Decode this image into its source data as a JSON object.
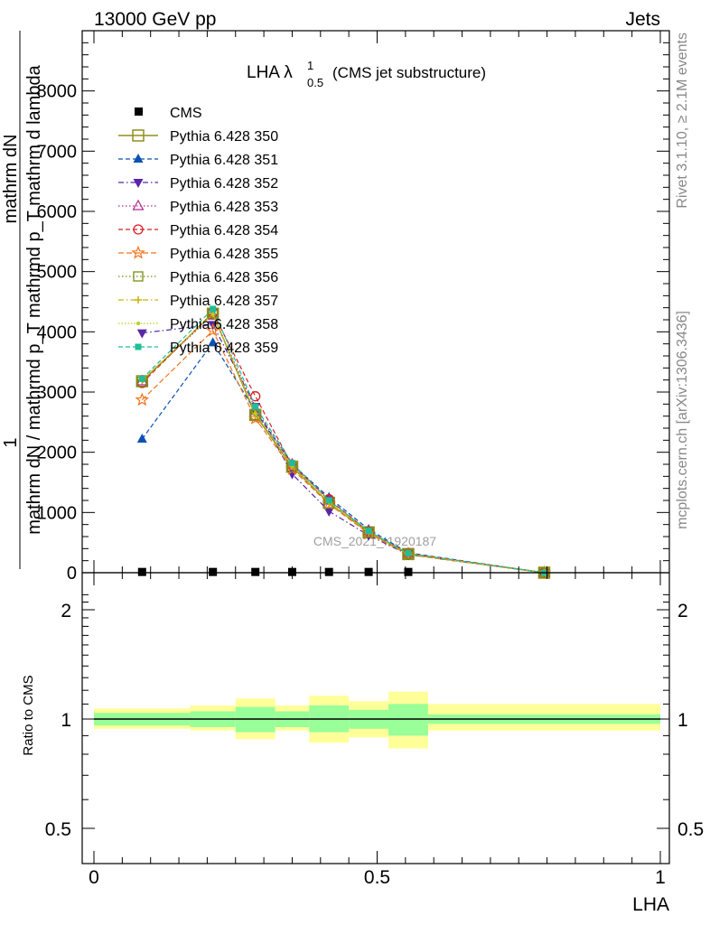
{
  "header": {
    "left": "13000 GeV pp",
    "right": "Jets"
  },
  "side_labels": {
    "rivet": "Rivet 3.1.10, ≥ 2.1M events",
    "mcplots": "mcplots.cern.ch [arXiv:1306.3436]"
  },
  "chart_data": {
    "type": "line",
    "title_main": "LHA λ",
    "title_sup": "1",
    "title_sub": "0.5",
    "title_note": "(CMS jet substructure)",
    "watermark": "CMS_2021_I1920187",
    "xlabel": "LHA",
    "ylabel_top": "1",
    "ylabel_mid": "mathrm dN",
    "ylabel_bottom": "mathrm dN / mathrmd p_T mathrmd p_T mathrm d lambda",
    "ratio_ylabel": "Ratio to CMS",
    "xlim": [
      0,
      1
    ],
    "main_ylim": [
      0,
      9000
    ],
    "main_yticks": [
      0,
      1000,
      2000,
      3000,
      4000,
      5000,
      6000,
      7000,
      8000
    ],
    "ratio_ylim": [
      0.4,
      2.3
    ],
    "ratio_yticks": [
      0.5,
      1,
      2
    ],
    "x_ticks": [
      0,
      0.5,
      1
    ],
    "x": [
      0.085,
      0.21,
      0.285,
      0.35,
      0.415,
      0.485,
      0.555,
      0.795
    ],
    "cms": {
      "name": "CMS",
      "x": [
        0.085,
        0.21,
        0.285,
        0.35,
        0.415,
        0.485,
        0.555
      ],
      "values": [
        5,
        5,
        5,
        5,
        5,
        5,
        5
      ]
    },
    "series": [
      {
        "name": "Pythia 6.428 350",
        "color": "#8f8f1f",
        "marker": "square-open",
        "dash": "",
        "width": 1.5,
        "values": [
          3180,
          4300,
          2620,
          1760,
          1160,
          670,
          310,
          0
        ]
      },
      {
        "name": "Pythia 6.428 351",
        "color": "#0b50b3",
        "marker": "triangle-up",
        "dash": "5,3",
        "values": [
          2220,
          3820,
          2680,
          1800,
          1250,
          720,
          330,
          0
        ]
      },
      {
        "name": "Pythia 6.428 352",
        "color": "#5a25a8",
        "marker": "triangle-down",
        "dash": "6,3,1.5,3",
        "values": [
          3980,
          4120,
          2760,
          1640,
          1020,
          620,
          300,
          0
        ]
      },
      {
        "name": "Pythia 6.428 353",
        "color": "#b3288a",
        "marker": "triangle-open",
        "dash": "1.5,2.5",
        "values": [
          3180,
          4280,
          2720,
          1800,
          1200,
          690,
          320,
          0
        ]
      },
      {
        "name": "Pythia 6.428 354",
        "color": "#d71e25",
        "marker": "circle-open",
        "dash": "5,3",
        "values": [
          3150,
          4320,
          2930,
          1780,
          1220,
          680,
          320,
          0
        ]
      },
      {
        "name": "Pythia 6.428 355",
        "color": "#f2731c",
        "marker": "star-open",
        "dash": "6,3",
        "values": [
          2870,
          4020,
          2560,
          1720,
          1140,
          650,
          300,
          0
        ]
      },
      {
        "name": "Pythia 6.428 356",
        "color": "#7a8d16",
        "marker": "square-open-small",
        "dash": "1.5,2.5",
        "values": [
          3170,
          4310,
          2620,
          1750,
          1150,
          670,
          310,
          0
        ]
      },
      {
        "name": "Pythia 6.428 357",
        "color": "#cdb100",
        "marker": "cross",
        "dash": "6,3,1.5,3",
        "values": [
          3190,
          4300,
          2640,
          1770,
          1160,
          670,
          310,
          0
        ]
      },
      {
        "name": "Pythia 6.428 358",
        "color": "#bdcc1d",
        "marker": "dot",
        "dash": "1.5,2",
        "values": [
          3200,
          4290,
          2650,
          1770,
          1170,
          680,
          310,
          0
        ]
      },
      {
        "name": "Pythia 6.428 359",
        "color": "#1fbe96",
        "marker": "square",
        "dash": "5,3",
        "values": [
          3220,
          4380,
          2760,
          1820,
          1200,
          690,
          320,
          0
        ]
      }
    ],
    "ratio_bands": [
      {
        "x0": 0.0,
        "x1": 0.17,
        "inner": [
          0.96,
          1.04
        ],
        "outer": [
          0.94,
          1.07
        ]
      },
      {
        "x0": 0.17,
        "x1": 0.25,
        "inner": [
          0.95,
          1.05
        ],
        "outer": [
          0.93,
          1.09
        ]
      },
      {
        "x0": 0.25,
        "x1": 0.32,
        "inner": [
          0.92,
          1.08
        ],
        "outer": [
          0.88,
          1.14
        ]
      },
      {
        "x0": 0.32,
        "x1": 0.38,
        "inner": [
          0.95,
          1.05
        ],
        "outer": [
          0.93,
          1.09
        ]
      },
      {
        "x0": 0.38,
        "x1": 0.45,
        "inner": [
          0.92,
          1.09
        ],
        "outer": [
          0.86,
          1.16
        ]
      },
      {
        "x0": 0.45,
        "x1": 0.52,
        "inner": [
          0.94,
          1.06
        ],
        "outer": [
          0.89,
          1.12
        ]
      },
      {
        "x0": 0.52,
        "x1": 0.59,
        "inner": [
          0.9,
          1.1
        ],
        "outer": [
          0.83,
          1.19
        ]
      },
      {
        "x0": 0.59,
        "x1": 1.0,
        "inner": [
          0.97,
          1.03
        ],
        "outer": [
          0.93,
          1.1
        ]
      }
    ],
    "colors": {
      "inner_band": "#99ff99",
      "outer_band": "#ffff99"
    }
  }
}
